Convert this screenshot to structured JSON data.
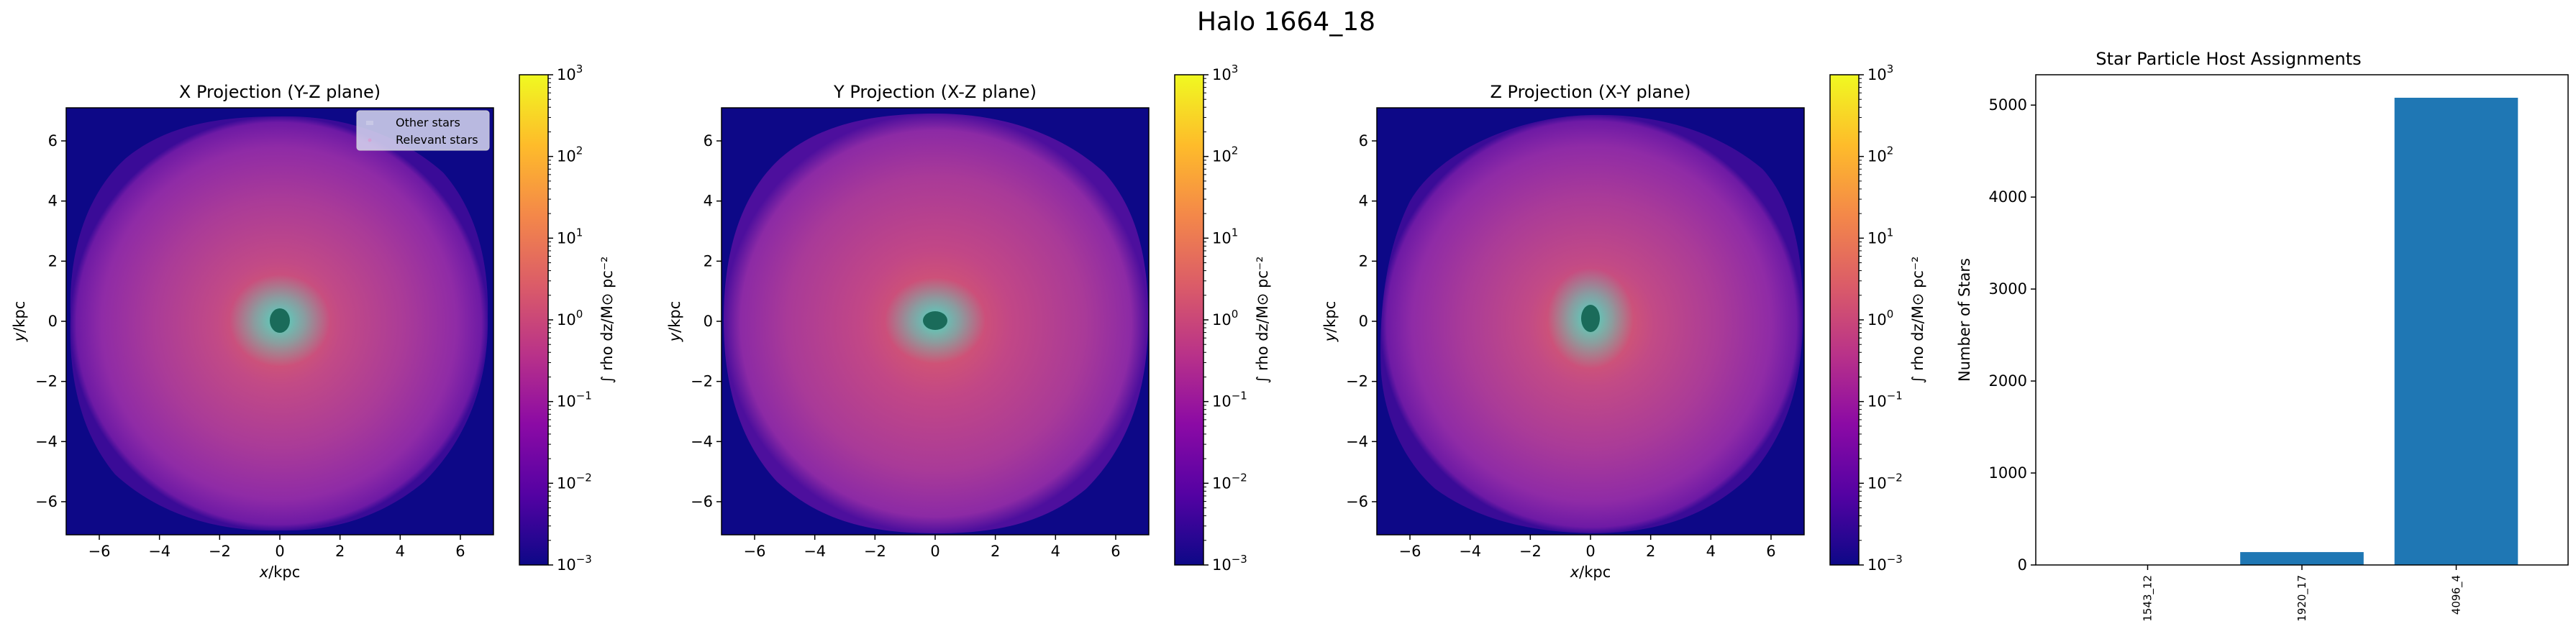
{
  "figure": {
    "suptitle": "Halo 1664_18"
  },
  "colorbar": {
    "label": "∫ rho dz/M⊙ pc⁻²",
    "ticks": [
      {
        "base": "10",
        "exp": "3"
      },
      {
        "base": "10",
        "exp": "2"
      },
      {
        "base": "10",
        "exp": "1"
      },
      {
        "base": "10",
        "exp": "0"
      },
      {
        "base": "10",
        "exp": "−1"
      },
      {
        "base": "10",
        "exp": "−2"
      },
      {
        "base": "10",
        "exp": "−3"
      }
    ],
    "colormap": "plasma",
    "range": [
      0.001,
      1000
    ]
  },
  "legend": {
    "items": [
      {
        "label": "Other stars",
        "color": "#c8c8e6"
      },
      {
        "label": "Relevant stars",
        "color": "#d5a4d5"
      }
    ]
  },
  "axis_ticks": [
    "−6",
    "−4",
    "−2",
    "0",
    "2",
    "4",
    "6"
  ],
  "xlabel_italic": "x",
  "ylabel_italic": "y",
  "unit_label": "/kpc",
  "chart_data": [
    {
      "type": "heatmap",
      "title": "X Projection (Y-Z plane)",
      "xlabel": "x/kpc",
      "ylabel": "y/kpc",
      "xlim": [
        -7.1,
        7.1
      ],
      "ylim": [
        -7.1,
        7.1
      ],
      "log_scale": true,
      "legend_position": "upper-right"
    },
    {
      "type": "heatmap",
      "title": "Y Projection (X-Z plane)",
      "xlabel": "",
      "ylabel": "y/kpc",
      "xlim": [
        -7.1,
        7.1
      ],
      "ylim": [
        -7.1,
        7.1
      ],
      "log_scale": true
    },
    {
      "type": "heatmap",
      "title": "Z Projection (X-Y plane)",
      "xlabel": "x/kpc",
      "ylabel": "y/kpc",
      "xlim": [
        -7.1,
        7.1
      ],
      "ylim": [
        -7.1,
        7.1
      ],
      "log_scale": true
    },
    {
      "type": "bar",
      "title": "Star Particle Host Assignments",
      "categories": [
        "1543_12",
        "1920_17",
        "4096_4"
      ],
      "values": [
        3,
        140,
        5080
      ],
      "xlabel": "",
      "ylabel": "Number of Stars",
      "ylim": [
        0,
        5330
      ],
      "yticks": [
        0,
        1000,
        2000,
        3000,
        4000,
        5000
      ],
      "bar_color": "#1f77b4",
      "grid": false
    }
  ]
}
